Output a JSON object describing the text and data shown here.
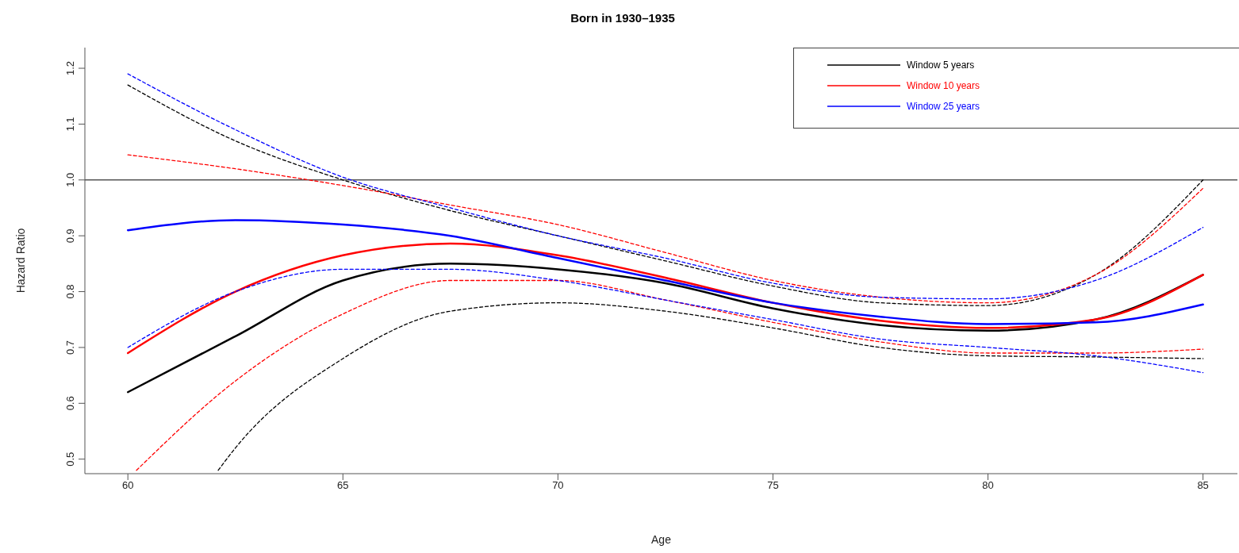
{
  "chart_data": {
    "type": "line",
    "title": "Born in 1930–1935",
    "xlabel": "Age",
    "ylabel": "Hazard Ratio",
    "xlim": [
      59,
      85.8
    ],
    "xticks": [
      60,
      65,
      70,
      75,
      80,
      85
    ],
    "ylim": [
      0.474,
      1.237
    ],
    "yticks": [
      0.5,
      0.6,
      0.7,
      0.8,
      0.9,
      {
        "value": 1,
        "label": "1.0"
      },
      1.1,
      1.2
    ],
    "grid": false,
    "legend": "top right",
    "ref_lines": [
      {
        "axis": "y",
        "value": 1,
        "color": "#555555"
      }
    ],
    "series": [
      {
        "name": "Window 5 years",
        "color": "#000000",
        "line_style": "solid",
        "x": [
          60,
          62.5,
          65,
          67.5,
          70,
          72.5,
          75,
          77.5,
          80,
          82.5,
          85
        ],
        "values": [
          0.62,
          0.72,
          0.82,
          0.85,
          0.84,
          0.815,
          0.77,
          0.74,
          0.73,
          0.75,
          0.83
        ]
      },
      {
        "name": "Window 10 years",
        "color": "#ff0000",
        "line_style": "solid",
        "x": [
          60,
          62.5,
          65,
          67.5,
          70,
          72.5,
          75,
          77.5,
          80,
          82.5,
          85
        ],
        "values": [
          0.69,
          0.8,
          0.865,
          0.886,
          0.865,
          0.825,
          0.78,
          0.748,
          0.735,
          0.75,
          0.83
        ]
      },
      {
        "name": "Window 25 years",
        "color": "#0000ff",
        "line_style": "solid",
        "x": [
          60,
          62.5,
          65,
          67.5,
          70,
          72.5,
          75,
          77.5,
          80,
          82.5,
          85
        ],
        "values": [
          0.91,
          0.928,
          0.92,
          0.9,
          0.86,
          0.82,
          0.78,
          0.755,
          0.742,
          0.745,
          0.777
        ]
      },
      {
        "color": "#000000",
        "line_style": "dashed",
        "x": [
          60,
          62.5,
          65,
          67.5,
          70,
          72.5,
          75,
          77.5,
          80,
          82.5,
          85
        ],
        "values": [
          1.17,
          1.07,
          1.0,
          0.945,
          0.9,
          0.855,
          0.81,
          0.78,
          0.775,
          0.83,
          1.0
        ]
      },
      {
        "color": "#000000",
        "line_style": "dashed",
        "x": [
          62.1,
          62.5,
          65,
          67.5,
          70,
          72.5,
          75,
          77.5,
          80,
          82.5,
          85
        ],
        "values": [
          0.48,
          0.52,
          0.68,
          0.765,
          0.78,
          0.765,
          0.735,
          0.7,
          0.685,
          0.683,
          0.68
        ]
      },
      {
        "color": "#ff0000",
        "line_style": "dashed",
        "x": [
          60,
          62.5,
          65,
          67.5,
          70,
          72.5,
          75,
          77.5,
          80,
          82.5,
          85
        ],
        "values": [
          1.045,
          1.02,
          0.99,
          0.955,
          0.92,
          0.87,
          0.82,
          0.79,
          0.78,
          0.83,
          0.985
        ]
      },
      {
        "color": "#ff0000",
        "line_style": "dashed",
        "x": [
          60.2,
          62.5,
          65,
          67.5,
          70,
          72.5,
          75,
          77.5,
          80,
          82.5,
          85
        ],
        "values": [
          0.48,
          0.64,
          0.76,
          0.82,
          0.82,
          0.785,
          0.745,
          0.71,
          0.69,
          0.69,
          0.697
        ]
      },
      {
        "color": "#0000ff",
        "line_style": "dashed",
        "x": [
          60,
          62.5,
          65,
          67.5,
          70,
          72.5,
          75,
          77.5,
          80,
          82.5,
          85
        ],
        "values": [
          1.19,
          1.09,
          1.005,
          0.95,
          0.9,
          0.86,
          0.815,
          0.79,
          0.787,
          0.82,
          0.915
        ]
      },
      {
        "color": "#0000ff",
        "line_style": "dashed",
        "x": [
          60,
          62.5,
          65,
          67.5,
          70,
          72.5,
          75,
          77.5,
          80,
          82.5,
          85
        ],
        "values": [
          0.7,
          0.8,
          0.84,
          0.84,
          0.82,
          0.785,
          0.75,
          0.715,
          0.7,
          0.685,
          0.655
        ]
      }
    ]
  }
}
